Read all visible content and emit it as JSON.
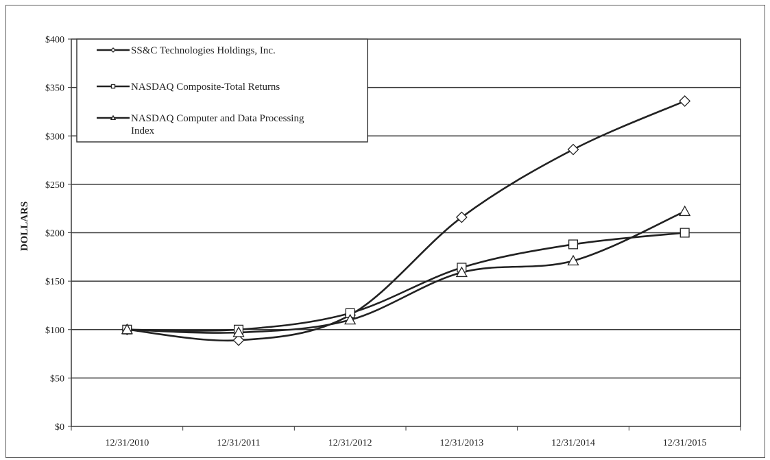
{
  "chart_data": {
    "type": "line",
    "title": "",
    "xlabel": "",
    "ylabel": "DOLLARS",
    "categories": [
      "12/31/2010",
      "12/31/2011",
      "12/31/2012",
      "12/31/2013",
      "12/31/2014",
      "12/31/2015"
    ],
    "ylim": [
      0,
      400
    ],
    "y_ticks": [
      0,
      50,
      100,
      150,
      200,
      250,
      300,
      350,
      400
    ],
    "y_tick_labels": [
      "$0",
      "$50",
      "$100",
      "$150",
      "$200",
      "$250",
      "$300",
      "$350",
      "$400"
    ],
    "grid": "horizontal",
    "legend_position": "top-left",
    "line_color": "#222222",
    "series": [
      {
        "name": "SS&C Technologies Holdings, Inc.",
        "marker": "diamond",
        "values": [
          100,
          89,
          115,
          216,
          286,
          336
        ]
      },
      {
        "name": "NASDAQ Composite-Total Returns",
        "marker": "square",
        "values": [
          100,
          100,
          117,
          164,
          188,
          200
        ]
      },
      {
        "name": "NASDAQ Computer and Data Processing Index",
        "marker": "triangle",
        "values": [
          100,
          97,
          110,
          159,
          171,
          222
        ]
      }
    ]
  }
}
